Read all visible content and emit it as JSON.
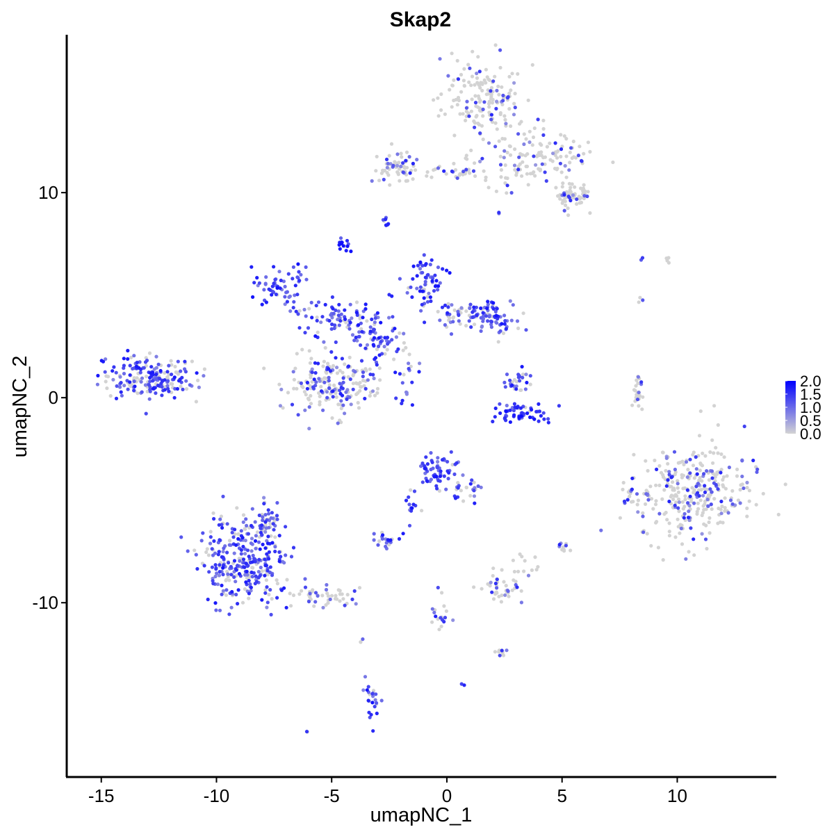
{
  "chart_data": {
    "type": "scatter",
    "title": "Skap2",
    "xlabel": "umapNC_1",
    "ylabel": "umapNC_2",
    "xlim": [
      -16.5,
      14.3
    ],
    "ylim": [
      -18.5,
      17.7
    ],
    "x_ticks": [
      -15,
      -10,
      -5,
      0,
      5,
      10
    ],
    "x_tick_labels": [
      "-15",
      "-10",
      "-5",
      "0",
      "5",
      "10"
    ],
    "y_ticks": [
      -10,
      0,
      10
    ],
    "y_tick_labels": [
      "-10",
      "0",
      "10"
    ],
    "grid": false,
    "legend_position": "right",
    "color_scale": {
      "low_color": "#d3d3d3",
      "high_color": "#0000ff",
      "min": 0,
      "max": 2.0,
      "breaks": [
        2.0,
        1.5,
        1.0,
        0.5,
        0.0
      ],
      "break_labels": [
        "2.0",
        "1.5",
        "1.0",
        "0.5",
        "0.0"
      ]
    },
    "clusters": [
      {
        "cx": 1.6,
        "cy": 14.5,
        "sx": 0.9,
        "sy": 0.9,
        "n": 160,
        "expr": 0.12
      },
      {
        "cx": 3.6,
        "cy": 11.7,
        "sx": 1.3,
        "sy": 0.8,
        "n": 140,
        "expr": 0.18
      },
      {
        "cx": 5.5,
        "cy": 9.8,
        "sx": 0.4,
        "sy": 0.3,
        "n": 60,
        "expr": 0.08
      },
      {
        "cx": -2.2,
        "cy": 11.3,
        "sx": 0.5,
        "sy": 0.4,
        "n": 60,
        "expr": 0.22
      },
      {
        "cx": -0.3,
        "cy": 11.0,
        "sx": 1.0,
        "sy": 0.2,
        "n": 30,
        "expr": 0.1
      },
      {
        "cx": -2.6,
        "cy": 8.5,
        "sx": 0.12,
        "sy": 0.15,
        "n": 8,
        "expr": 0.55
      },
      {
        "cx": -4.4,
        "cy": 7.4,
        "sx": 0.15,
        "sy": 0.15,
        "n": 14,
        "expr": 0.9
      },
      {
        "cx": -12.9,
        "cy": 1.0,
        "sx": 1.0,
        "sy": 0.55,
        "n": 200,
        "expr": 0.6
      },
      {
        "cx": -7.1,
        "cy": 5.4,
        "sx": 0.6,
        "sy": 0.45,
        "n": 60,
        "expr": 0.85
      },
      {
        "cx": -4.6,
        "cy": 3.8,
        "sx": 0.9,
        "sy": 0.5,
        "n": 90,
        "expr": 0.7
      },
      {
        "cx": -3.0,
        "cy": 3.0,
        "sx": 0.5,
        "sy": 0.6,
        "n": 60,
        "expr": 0.75
      },
      {
        "cx": -4.8,
        "cy": 0.6,
        "sx": 1.0,
        "sy": 0.7,
        "n": 190,
        "expr": 0.3
      },
      {
        "cx": -1.0,
        "cy": 5.6,
        "sx": 0.5,
        "sy": 0.5,
        "n": 60,
        "expr": 0.8
      },
      {
        "cx": 0.5,
        "cy": 4.1,
        "sx": 0.9,
        "sy": 0.3,
        "n": 60,
        "expr": 0.5
      },
      {
        "cx": 2.0,
        "cy": 3.9,
        "sx": 0.6,
        "sy": 0.45,
        "n": 60,
        "expr": 0.7
      },
      {
        "cx": -1.7,
        "cy": 1.5,
        "sx": 0.3,
        "sy": 0.7,
        "n": 24,
        "expr": 0.55
      },
      {
        "cx": 3.0,
        "cy": 0.8,
        "sx": 0.3,
        "sy": 0.3,
        "n": 30,
        "expr": 0.6
      },
      {
        "cx": 3.2,
        "cy": -0.7,
        "sx": 0.7,
        "sy": 0.3,
        "n": 60,
        "expr": 1.0
      },
      {
        "cx": 8.3,
        "cy": 0.3,
        "sx": 0.15,
        "sy": 0.45,
        "n": 30,
        "expr": 0.05
      },
      {
        "cx": 10.6,
        "cy": -4.6,
        "sx": 1.15,
        "sy": 1.1,
        "n": 330,
        "expr": 0.25
      },
      {
        "cx": 8.0,
        "cy": -4.8,
        "sx": 0.2,
        "sy": 0.3,
        "n": 14,
        "expr": 0.3
      },
      {
        "cx": -8.8,
        "cy": -8.0,
        "sx": 0.9,
        "sy": 1.0,
        "n": 300,
        "expr": 0.65
      },
      {
        "cx": -7.8,
        "cy": -6.2,
        "sx": 0.35,
        "sy": 0.4,
        "n": 50,
        "expr": 0.5
      },
      {
        "cx": -5.5,
        "cy": -9.7,
        "sx": 0.9,
        "sy": 0.3,
        "n": 50,
        "expr": 0.25
      },
      {
        "cx": -0.4,
        "cy": -3.6,
        "sx": 0.45,
        "sy": 0.35,
        "n": 60,
        "expr": 0.8
      },
      {
        "cx": 0.8,
        "cy": -4.5,
        "sx": 0.4,
        "sy": 0.3,
        "n": 24,
        "expr": 0.6
      },
      {
        "cx": -1.4,
        "cy": -5.4,
        "sx": 0.25,
        "sy": 0.4,
        "n": 14,
        "expr": 0.7
      },
      {
        "cx": -2.6,
        "cy": -6.9,
        "sx": 0.3,
        "sy": 0.2,
        "n": 24,
        "expr": 0.6
      },
      {
        "cx": 2.3,
        "cy": -9.3,
        "sx": 0.4,
        "sy": 0.35,
        "n": 40,
        "expr": 0.25
      },
      {
        "cx": 3.3,
        "cy": -8.2,
        "sx": 0.3,
        "sy": 0.3,
        "n": 12,
        "expr": 0.1
      },
      {
        "cx": 5.0,
        "cy": -7.3,
        "sx": 0.15,
        "sy": 0.15,
        "n": 10,
        "expr": 0.2
      },
      {
        "cx": -0.3,
        "cy": -10.8,
        "sx": 0.2,
        "sy": 0.6,
        "n": 18,
        "expr": 0.4
      },
      {
        "cx": 2.3,
        "cy": -12.5,
        "sx": 0.25,
        "sy": 0.15,
        "n": 10,
        "expr": 0.3
      },
      {
        "cx": -3.3,
        "cy": -15.0,
        "sx": 0.2,
        "sy": 0.5,
        "n": 24,
        "expr": 0.8
      },
      {
        "cx": -3.7,
        "cy": -11.9,
        "sx": 0.05,
        "sy": 0.1,
        "n": 3,
        "expr": 0.2
      },
      {
        "cx": -6.0,
        "cy": -16.3,
        "sx": 0.05,
        "sy": 0.05,
        "n": 2,
        "expr": 0.6
      },
      {
        "cx": 9.7,
        "cy": 6.8,
        "sx": 0.15,
        "sy": 0.1,
        "n": 4,
        "expr": 0.0
      },
      {
        "cx": 8.6,
        "cy": 4.8,
        "sx": 0.1,
        "sy": 0.2,
        "n": 3,
        "expr": 0.3
      },
      {
        "cx": 8.5,
        "cy": 6.7,
        "sx": 0.05,
        "sy": 0.05,
        "n": 2,
        "expr": 0.9
      },
      {
        "cx": 0.7,
        "cy": -14.0,
        "sx": 0.05,
        "sy": 0.05,
        "n": 2,
        "expr": 0.4
      }
    ]
  }
}
